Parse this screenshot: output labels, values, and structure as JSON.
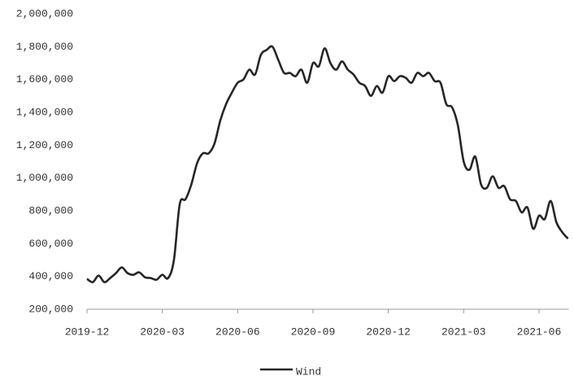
{
  "chart_data": {
    "type": "line",
    "categories": [
      "2019-12",
      null,
      null,
      null,
      null,
      null,
      null,
      null,
      null,
      null,
      null,
      null,
      null,
      "2020-03",
      null,
      null,
      null,
      null,
      null,
      null,
      null,
      null,
      null,
      null,
      null,
      null,
      "2020-06",
      null,
      null,
      null,
      null,
      null,
      null,
      null,
      null,
      null,
      null,
      null,
      null,
      "2020-09",
      null,
      null,
      null,
      null,
      null,
      null,
      null,
      null,
      null,
      null,
      null,
      null,
      "2020-12",
      null,
      null,
      null,
      null,
      null,
      null,
      null,
      null,
      null,
      null,
      null,
      null,
      "2021-03",
      null,
      null,
      null,
      null,
      null,
      null,
      null,
      null,
      null,
      null,
      null,
      null,
      "2021-06",
      null,
      null,
      null,
      null,
      null
    ],
    "series": [
      {
        "name": "Wind",
        "color": "#262626",
        "values": [
          385000,
          365000,
          405000,
          365000,
          390000,
          420000,
          455000,
          420000,
          410000,
          425000,
          395000,
          390000,
          380000,
          410000,
          390000,
          500000,
          840000,
          870000,
          960000,
          1090000,
          1150000,
          1150000,
          1210000,
          1350000,
          1450000,
          1520000,
          1580000,
          1600000,
          1660000,
          1630000,
          1750000,
          1780000,
          1800000,
          1720000,
          1640000,
          1640000,
          1620000,
          1660000,
          1580000,
          1700000,
          1680000,
          1790000,
          1700000,
          1660000,
          1710000,
          1660000,
          1630000,
          1580000,
          1560000,
          1500000,
          1560000,
          1520000,
          1620000,
          1590000,
          1620000,
          1610000,
          1580000,
          1640000,
          1620000,
          1640000,
          1590000,
          1580000,
          1450000,
          1430000,
          1320000,
          1100000,
          1050000,
          1130000,
          960000,
          940000,
          1010000,
          940000,
          950000,
          870000,
          860000,
          790000,
          820000,
          690000,
          770000,
          750000,
          860000,
          730000,
          670000,
          630000
        ]
      }
    ],
    "ylim": [
      200000,
      2000000
    ],
    "yticks": [
      {
        "value": 200000,
        "label": "200,000"
      },
      {
        "value": 400000,
        "label": "400,000"
      },
      {
        "value": 600000,
        "label": "600,000"
      },
      {
        "value": 800000,
        "label": "800,000"
      },
      {
        "value": 1000000,
        "label": "1,000,000"
      },
      {
        "value": 1200000,
        "label": "1,200,000"
      },
      {
        "value": 1400000,
        "label": "1,400,000"
      },
      {
        "value": 1600000,
        "label": "1,600,000"
      },
      {
        "value": 1800000,
        "label": "1,800,000"
      },
      {
        "value": 2000000,
        "label": "2,000,000"
      }
    ],
    "grid": false,
    "legend": "bottom"
  }
}
